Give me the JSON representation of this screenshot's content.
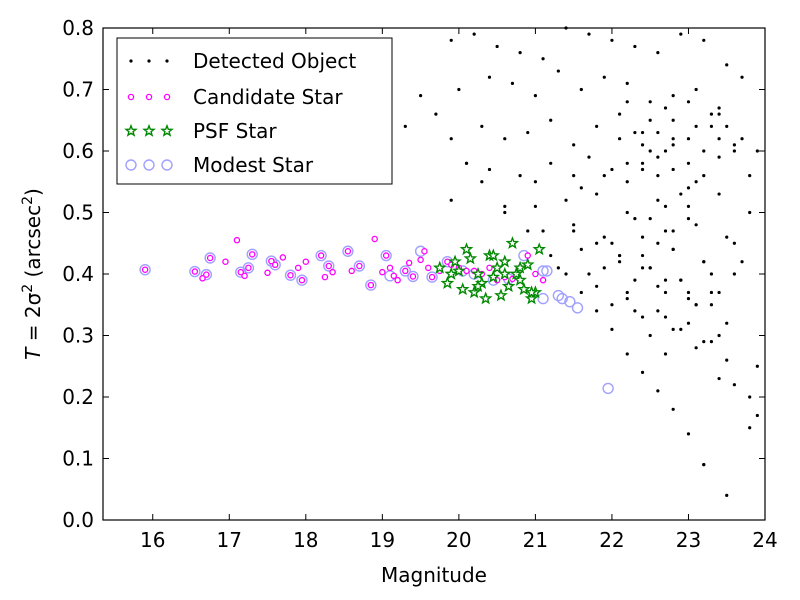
{
  "chart_data": {
    "type": "scatter",
    "xlabel": "Magnitude",
    "ylabel_prefix": "T",
    "ylabel_eq": " = 2σ",
    "ylabel_sup1": "2",
    "ylabel_unit": " (arcsec",
    "ylabel_sup2": "2",
    "ylabel_close": ")",
    "xlim": [
      15.35,
      24.0
    ],
    "ylim": [
      0.0,
      0.8
    ],
    "x_ticks": [
      16,
      17,
      18,
      19,
      20,
      21,
      22,
      23,
      24
    ],
    "x_tick_labels": [
      "16",
      "17",
      "18",
      "19",
      "20",
      "21",
      "22",
      "23",
      "24"
    ],
    "y_ticks": [
      0.0,
      0.1,
      0.2,
      0.3,
      0.4,
      0.5,
      0.6,
      0.7,
      0.8
    ],
    "y_tick_labels": [
      "0.0",
      "0.1",
      "0.2",
      "0.3",
      "0.4",
      "0.5",
      "0.6",
      "0.7",
      "0.8"
    ],
    "grid": false,
    "legend_position": "top-left",
    "series": [
      {
        "name": "Detected Object",
        "marker": "dot",
        "color": "#000000",
        "x": [
          19.9,
          20.2,
          20.5,
          20.8,
          21.1,
          21.4,
          21.7,
          22.0,
          22.3,
          22.6,
          22.9,
          23.2,
          23.5,
          20.0,
          20.4,
          20.7,
          21.0,
          21.3,
          21.6,
          21.9,
          22.2,
          22.5,
          22.8,
          23.1,
          23.4,
          23.7,
          20.3,
          20.6,
          20.9,
          21.2,
          21.5,
          21.8,
          22.1,
          22.4,
          22.7,
          23.0,
          23.3,
          23.6,
          19.3,
          19.0,
          19.9,
          20.1,
          20.4,
          20.8,
          21.0,
          21.2,
          21.5,
          21.7,
          22.0,
          22.2,
          22.4,
          22.6,
          22.8,
          23.0,
          23.2,
          23.4,
          20.6,
          21.0,
          21.4,
          21.8,
          22.2,
          22.6,
          23.0,
          23.4,
          23.8,
          21.1,
          21.5,
          21.9,
          22.3,
          22.7,
          23.1,
          23.5,
          21.6,
          22.0,
          22.4,
          22.8,
          23.2,
          23.6,
          21.3,
          21.7,
          22.1,
          22.5,
          22.9,
          23.3,
          23.7,
          22.2,
          22.6,
          23.0,
          23.4,
          22.3,
          22.7,
          23.1,
          23.5,
          22.5,
          22.9,
          23.3,
          22.7,
          23.1,
          23.5,
          23.9,
          22.0,
          22.4,
          22.8,
          23.2,
          21.8,
          22.2,
          22.6,
          23.0,
          23.4,
          21.9,
          22.3,
          22.7,
          23.1,
          22.1,
          22.5,
          22.9,
          23.3,
          22.4,
          22.8,
          23.2,
          23.6,
          23.8,
          23.9,
          23.6,
          23.4,
          23.2,
          23.0,
          22.8,
          22.6,
          22.4,
          22.2,
          22.0,
          21.8,
          21.6,
          21.4,
          21.2,
          20.9,
          20.6,
          20.3,
          20.1,
          19.9,
          19.7,
          19.5,
          22.5,
          22.7,
          22.9,
          23.1,
          22.6,
          22.8,
          23.0,
          22.4,
          22.6,
          22.8,
          22.3,
          22.5,
          22.7,
          23.0,
          23.3,
          23.5,
          23.7,
          23.9,
          22.1,
          22.2,
          22.4,
          22.6,
          22.8,
          23.0,
          23.2,
          23.4,
          21.6,
          21.9,
          22.2,
          22.5,
          22.8,
          23.1,
          23.4,
          23.6,
          23.8,
          21.5,
          21.8,
          22.1,
          22.4,
          22.7,
          23.0,
          23.3
        ],
        "y": [
          0.78,
          0.79,
          0.77,
          0.76,
          0.75,
          0.8,
          0.79,
          0.78,
          0.77,
          0.76,
          0.79,
          0.78,
          0.74,
          0.7,
          0.72,
          0.71,
          0.69,
          0.73,
          0.7,
          0.72,
          0.71,
          0.68,
          0.69,
          0.7,
          0.67,
          0.72,
          0.64,
          0.62,
          0.63,
          0.65,
          0.61,
          0.64,
          0.62,
          0.63,
          0.6,
          0.62,
          0.64,
          0.61,
          0.64,
          0.59,
          0.52,
          0.58,
          0.57,
          0.56,
          0.55,
          0.58,
          0.56,
          0.59,
          0.57,
          0.55,
          0.58,
          0.56,
          0.57,
          0.54,
          0.56,
          0.59,
          0.5,
          0.51,
          0.52,
          0.53,
          0.5,
          0.52,
          0.51,
          0.53,
          0.5,
          0.47,
          0.48,
          0.46,
          0.49,
          0.47,
          0.48,
          0.46,
          0.44,
          0.45,
          0.43,
          0.44,
          0.42,
          0.45,
          0.41,
          0.4,
          0.42,
          0.41,
          0.39,
          0.4,
          0.42,
          0.37,
          0.38,
          0.36,
          0.37,
          0.34,
          0.33,
          0.35,
          0.32,
          0.3,
          0.31,
          0.29,
          0.27,
          0.28,
          0.26,
          0.25,
          0.35,
          0.33,
          0.31,
          0.29,
          0.38,
          0.36,
          0.34,
          0.32,
          0.3,
          0.41,
          0.39,
          0.37,
          0.35,
          0.43,
          0.41,
          0.39,
          0.37,
          0.46,
          0.44,
          0.42,
          0.4,
          0.2,
          0.17,
          0.22,
          0.23,
          0.09,
          0.14,
          0.18,
          0.21,
          0.24,
          0.27,
          0.31,
          0.34,
          0.37,
          0.4,
          0.43,
          0.47,
          0.51,
          0.55,
          0.58,
          0.62,
          0.66,
          0.69,
          0.49,
          0.51,
          0.53,
          0.55,
          0.45,
          0.47,
          0.49,
          0.57,
          0.59,
          0.61,
          0.63,
          0.65,
          0.67,
          0.68,
          0.66,
          0.64,
          0.62,
          0.6,
          0.66,
          0.68,
          0.61,
          0.63,
          0.65,
          0.58,
          0.6,
          0.62,
          0.54,
          0.56,
          0.58,
          0.6,
          0.62,
          0.64,
          0.66,
          0.6,
          0.56,
          0.47,
          0.45,
          0.43,
          0.41,
          0.39,
          0.37,
          0.35
        ],
        "extra_x": [
          23.5,
          23.8,
          23.2
        ],
        "extra_y": [
          0.04,
          0.15,
          0.09
        ]
      },
      {
        "name": "Candidate Star",
        "marker": "circle",
        "color": "#ff00ff",
        "x": [
          15.9,
          16.55,
          16.65,
          16.7,
          16.75,
          16.95,
          17.1,
          17.15,
          17.2,
          17.25,
          17.3,
          17.5,
          17.55,
          17.6,
          17.7,
          17.8,
          17.9,
          17.95,
          18.0,
          18.2,
          18.25,
          18.3,
          18.35,
          18.55,
          18.6,
          18.7,
          18.85,
          18.9,
          19.0,
          19.05,
          19.1,
          19.15,
          19.2,
          19.3,
          19.35,
          19.4,
          19.5,
          19.55,
          19.6,
          19.65,
          19.75,
          19.85,
          19.9,
          20.0,
          20.1,
          20.2,
          20.3,
          20.4,
          20.5,
          20.6,
          20.7,
          20.8,
          20.9,
          21.0,
          21.1
        ],
        "y": [
          0.407,
          0.404,
          0.393,
          0.399,
          0.426,
          0.42,
          0.455,
          0.403,
          0.397,
          0.41,
          0.432,
          0.402,
          0.421,
          0.415,
          0.427,
          0.398,
          0.41,
          0.39,
          0.42,
          0.43,
          0.395,
          0.413,
          0.403,
          0.437,
          0.405,
          0.413,
          0.382,
          0.457,
          0.403,
          0.43,
          0.41,
          0.397,
          0.39,
          0.405,
          0.418,
          0.396,
          0.423,
          0.437,
          0.41,
          0.395,
          0.405,
          0.42,
          0.415,
          0.41,
          0.405,
          0.405,
          0.4,
          0.41,
          0.39,
          0.395,
          0.392,
          0.41,
          0.43,
          0.4,
          0.39
        ]
      },
      {
        "name": "PSF Star",
        "marker": "star",
        "color": "#00aa00",
        "x": [
          19.75,
          19.85,
          19.9,
          19.95,
          20.0,
          20.05,
          20.1,
          20.15,
          20.2,
          20.25,
          20.3,
          20.35,
          20.4,
          20.45,
          20.5,
          20.55,
          20.6,
          20.65,
          20.7,
          20.75,
          20.8,
          20.85,
          20.9,
          20.95,
          21.0,
          21.05,
          20.25,
          20.45,
          20.6,
          20.8,
          20.95
        ],
        "y": [
          0.41,
          0.385,
          0.4,
          0.42,
          0.405,
          0.375,
          0.44,
          0.425,
          0.37,
          0.4,
          0.385,
          0.36,
          0.43,
          0.395,
          0.41,
          0.365,
          0.42,
          0.38,
          0.45,
          0.4,
          0.39,
          0.375,
          0.415,
          0.36,
          0.37,
          0.44,
          0.38,
          0.43,
          0.4,
          0.41,
          0.37
        ]
      },
      {
        "name": "Modest Star",
        "marker": "ring",
        "color": "#8080ff",
        "x": [
          15.9,
          16.55,
          16.7,
          16.75,
          17.15,
          17.25,
          17.3,
          17.55,
          17.6,
          17.8,
          17.95,
          18.2,
          18.3,
          18.55,
          18.7,
          18.85,
          19.05,
          19.1,
          19.3,
          19.4,
          19.5,
          19.65,
          19.85,
          20.05,
          20.2,
          20.45,
          20.65,
          20.85,
          21.1,
          21.15,
          21.3,
          21.35,
          21.45,
          21.55,
          21.95,
          21.1
        ],
        "y": [
          0.407,
          0.404,
          0.399,
          0.426,
          0.403,
          0.41,
          0.432,
          0.421,
          0.415,
          0.398,
          0.39,
          0.43,
          0.413,
          0.437,
          0.413,
          0.382,
          0.43,
          0.397,
          0.405,
          0.396,
          0.437,
          0.395,
          0.42,
          0.405,
          0.4,
          0.39,
          0.392,
          0.43,
          0.36,
          0.405,
          0.365,
          0.36,
          0.355,
          0.345,
          0.214,
          0.405
        ]
      }
    ]
  }
}
